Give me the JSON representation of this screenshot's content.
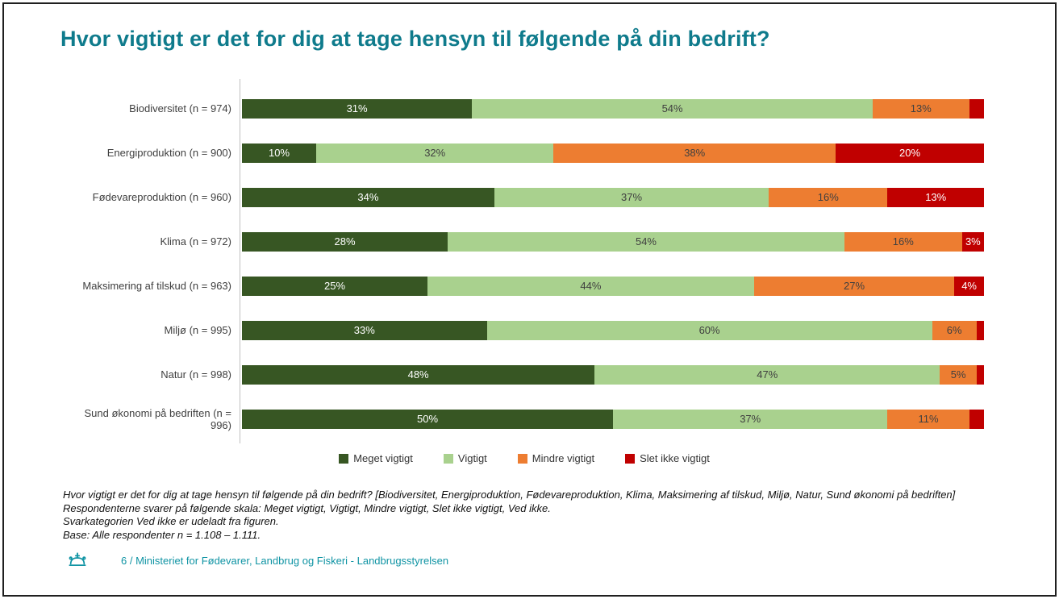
{
  "page": {
    "title": "Hvor vigtigt er det for dig at tage hensyn til følgende på din bedrift?",
    "footnotes": [
      "Hvor vigtigt er det for dig at tage hensyn til følgende på din bedrift? [Biodiversitet, Energiproduktion, Fødevareproduktion, Klima, Maksimering af tilskud, Miljø, Natur, Sund økonomi på bedriften]",
      "Respondenterne svarer på følgende skala: Meget vigtigt, Vigtigt, Mindre vigtigt, Slet ikke vigtigt, Ved ikke.",
      "Svarkategorien Ved ikke er udeladt fra figuren.",
      "Base: Alle respondenter n = 1.108 – 1.111."
    ],
    "footer_text": "6 / Ministeriet for Fødevarer, Landbrug og Fiskeri - Landbrugsstyrelsen"
  },
  "colors": {
    "title_teal": "#0f7b8c",
    "footer_teal": "#1094a4",
    "axis_gray": "#bfbfbf"
  },
  "icons": {
    "crown_icon": "danish-royal-crown"
  },
  "chart_data": {
    "type": "bar",
    "orientation": "horizontal",
    "stacked": true,
    "unit": "%",
    "xlim": [
      0,
      100
    ],
    "grid": false,
    "legend_position": "bottom-center",
    "label_min_value_for_display": 3,
    "categories": [
      "Biodiversitet (n = 974)",
      "Energiproduktion (n = 900)",
      "Fødevareproduktion (n = 960)",
      "Klima (n = 972)",
      "Maksimering af tilskud (n = 963)",
      "Miljø (n = 995)",
      "Natur (n = 998)",
      "Sund økonomi på bedriften (n = 996)"
    ],
    "series": [
      {
        "name": "Meget vigtigt",
        "color": "#375623",
        "text_color": "#ffffff",
        "values": [
          31,
          10,
          34,
          28,
          25,
          33,
          48,
          50
        ]
      },
      {
        "name": "Vigtigt",
        "color": "#a9d18e",
        "text_color": "#404040",
        "values": [
          54,
          32,
          37,
          54,
          44,
          60,
          47,
          37
        ]
      },
      {
        "name": "Mindre vigtigt",
        "color": "#ed7d31",
        "text_color": "#404040",
        "values": [
          13,
          38,
          16,
          16,
          27,
          6,
          5,
          11
        ]
      },
      {
        "name": "Slet ikke vigtigt",
        "color": "#c00000",
        "text_color": "#ffffff",
        "values": [
          2,
          20,
          13,
          3,
          4,
          1,
          1,
          2
        ]
      }
    ]
  }
}
